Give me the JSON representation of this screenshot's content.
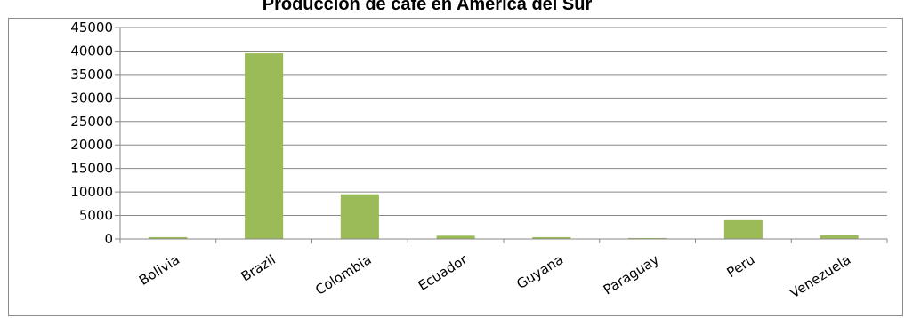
{
  "chart_data": {
    "type": "bar",
    "title": "Producción de café en América del Sur",
    "categories": [
      "Bolivia",
      "Brazil",
      "Colombia",
      "Ecuador",
      "Guyana",
      "Paraguay",
      "Peru",
      "Venezuela"
    ],
    "values": [
      400,
      39500,
      9500,
      700,
      400,
      200,
      4000,
      800
    ],
    "ylim": [
      0,
      45000
    ],
    "yticks": [
      0,
      5000,
      10000,
      15000,
      20000,
      25000,
      30000,
      35000,
      40000,
      45000
    ],
    "xlabel": "",
    "ylabel": "",
    "grid": true,
    "legend": "none",
    "bar_color": "#9BBB59",
    "grid_color": "#878787"
  }
}
